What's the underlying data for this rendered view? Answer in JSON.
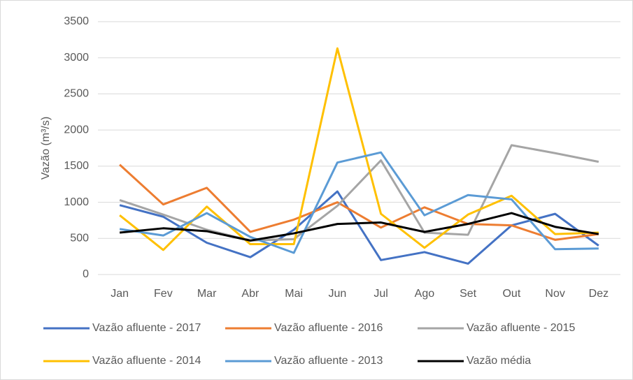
{
  "chart_data": {
    "type": "line",
    "ylabel": "Vazão (m³/s)",
    "categories": [
      "Jan",
      "Fev",
      "Mar",
      "Abr",
      "Mai",
      "Jun",
      "Jul",
      "Ago",
      "Set",
      "Out",
      "Nov",
      "Dez"
    ],
    "series": [
      {
        "name": "Vazão afluente - 2017",
        "color": "#4472c4",
        "values": [
          960,
          800,
          440,
          240,
          620,
          1150,
          200,
          310,
          150,
          680,
          840,
          400
        ]
      },
      {
        "name": "Vazão afluente - 2016",
        "color": "#ed7d31",
        "values": [
          1520,
          970,
          1200,
          590,
          760,
          1000,
          650,
          930,
          700,
          680,
          480,
          560
        ]
      },
      {
        "name": "Vazão afluente - 2015",
        "color": "#a5a5a5",
        "values": [
          1030,
          830,
          620,
          470,
          490,
          950,
          1580,
          580,
          550,
          1790,
          1680,
          1560
        ]
      },
      {
        "name": "Vazão afluente - 2014",
        "color": "#ffc000",
        "values": [
          820,
          340,
          940,
          420,
          420,
          3130,
          840,
          370,
          830,
          1090,
          560,
          580
        ]
      },
      {
        "name": "Vazão afluente - 2013",
        "color": "#5b9bd5",
        "values": [
          630,
          540,
          850,
          520,
          300,
          1550,
          1690,
          820,
          1100,
          1040,
          350,
          360
        ]
      },
      {
        "name": "Vazão média",
        "color": "#000000",
        "values": [
          580,
          640,
          600,
          470,
          570,
          700,
          720,
          590,
          700,
          850,
          660,
          560
        ]
      }
    ],
    "ylim": [
      0,
      3500
    ],
    "yticks": [
      0,
      500,
      1000,
      1500,
      2000,
      2500,
      3000,
      3500
    ],
    "grid": true,
    "legend": "bottom"
  }
}
